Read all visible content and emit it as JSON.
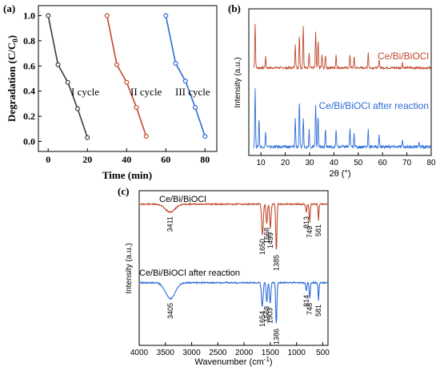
{
  "chart_data": [
    {
      "panel_label": "(a)",
      "type": "line",
      "xlabel": "Time (min)",
      "ylabel_main": "Degradation (C/C",
      "ylabel_sub": "0",
      "ylabel_close": ")",
      "xlim": [
        -5,
        86
      ],
      "ylim": [
        -0.08,
        1.08
      ],
      "x_ticks": [
        0,
        20,
        40,
        60,
        80
      ],
      "y_ticks": [
        0.0,
        0.2,
        0.4,
        0.6,
        0.8,
        1.0
      ],
      "y_tick_labels": [
        "0.0",
        "0.2",
        "0.4",
        "0.6",
        "0.8",
        "1.0"
      ],
      "grid": false,
      "series": [
        {
          "name": "I cycle",
          "color": "#3a3a3a",
          "x": [
            0,
            5,
            10,
            15,
            20
          ],
          "y": [
            1.0,
            0.61,
            0.47,
            0.26,
            0.03
          ]
        },
        {
          "name": "II cycle",
          "color": "#c0472b",
          "x": [
            30,
            35,
            40,
            45,
            50
          ],
          "y": [
            1.0,
            0.61,
            0.47,
            0.27,
            0.04
          ]
        },
        {
          "name": "III cycle",
          "color": "#2d6bd6",
          "x": [
            60,
            65,
            70,
            75,
            80
          ],
          "y": [
            1.0,
            0.62,
            0.48,
            0.27,
            0.04
          ]
        }
      ]
    },
    {
      "panel_label": "(b)",
      "type": "line",
      "xlabel": "2θ (°)",
      "ylabel": "Intensity (a.u.)",
      "xlim": [
        5,
        80
      ],
      "x_ticks": [
        10,
        20,
        30,
        40,
        50,
        60,
        70,
        80
      ],
      "grid": false,
      "series": [
        {
          "name": "Ce/Bi/BiOCl",
          "color": "#c0472b",
          "peaks": [
            [
              7.6,
              1.0
            ],
            [
              11.9,
              0.25
            ],
            [
              24.1,
              0.55
            ],
            [
              25.8,
              0.75
            ],
            [
              27.4,
              0.95
            ],
            [
              29.8,
              0.35
            ],
            [
              32.5,
              0.8
            ],
            [
              33.5,
              0.6
            ],
            [
              35.1,
              0.3
            ],
            [
              36.5,
              0.3
            ],
            [
              40.9,
              0.3
            ],
            [
              46.6,
              0.3
            ],
            [
              48.3,
              0.25
            ],
            [
              54.1,
              0.35
            ],
            [
              58.6,
              0.2
            ],
            [
              68.2,
              0.12
            ]
          ]
        },
        {
          "name": "Ce/Bi/BiOCl after reaction",
          "color": "#2d6bd6",
          "peaks": [
            [
              7.6,
              1.0
            ],
            [
              9.2,
              0.5
            ],
            [
              11.9,
              0.25
            ],
            [
              24.1,
              0.5
            ],
            [
              25.8,
              0.8
            ],
            [
              27.4,
              0.5
            ],
            [
              29.8,
              0.3
            ],
            [
              32.5,
              0.75
            ],
            [
              33.5,
              0.55
            ],
            [
              36.5,
              0.3
            ],
            [
              40.9,
              0.3
            ],
            [
              46.6,
              0.3
            ],
            [
              48.3,
              0.25
            ],
            [
              54.1,
              0.3
            ],
            [
              58.6,
              0.2
            ],
            [
              68.2,
              0.1
            ],
            [
              75.0,
              0.08
            ]
          ]
        }
      ]
    },
    {
      "panel_label": "(c)",
      "type": "line",
      "xlabel": "Wavenumber (cm",
      "xlabel_sup": "-1",
      "xlabel_close": ")",
      "ylabel": "Intensity (a.u.)",
      "xlim": [
        4000,
        400
      ],
      "x_ticks": [
        4000,
        3500,
        3000,
        2500,
        2000,
        1500,
        1000,
        500
      ],
      "grid": false,
      "series": [
        {
          "name": "Ce/Bi/BiOCl",
          "color": "#c0472b",
          "bands": [
            3411,
            1650,
            1568,
            1499,
            1385,
            813,
            749,
            581
          ],
          "band_labels": [
            "3411",
            "1650",
            "1568",
            "1499",
            "1385",
            "813",
            "749",
            "581"
          ]
        },
        {
          "name": "Ce/Bi/BiOCl after reaction",
          "color": "#2d6bd6",
          "bands": [
            3405,
            1654,
            1568,
            1503,
            1386,
            814,
            748,
            581
          ],
          "band_labels": [
            "3405",
            "1654",
            "1568",
            "1503",
            "1386",
            "814",
            "748",
            "581"
          ]
        }
      ]
    }
  ]
}
